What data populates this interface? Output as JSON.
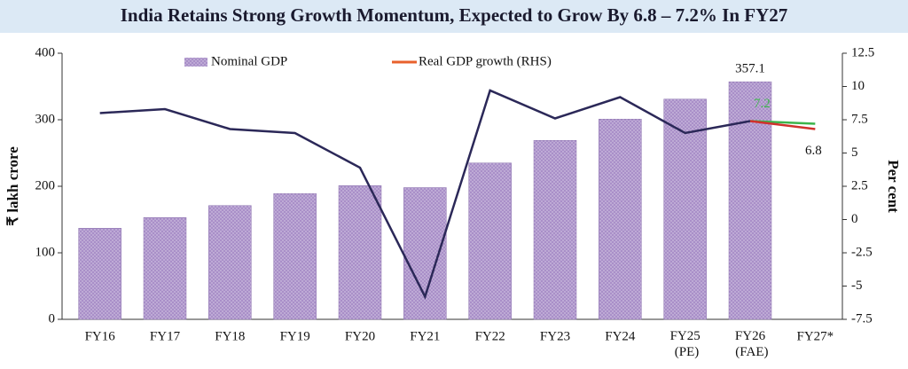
{
  "chart_data": {
    "type": "bar_line",
    "title": "India Retains Strong Growth Momentum, Expected to Grow By 6.8 – 7.2% In FY27",
    "y_label": "₹ lakh crore",
    "y2_label": "Per cent",
    "categories": [
      "FY16",
      "FY17",
      "FY18",
      "FY19",
      "FY20",
      "FY21",
      "FY22",
      "FY23",
      "FY24",
      "FY25 (PE)",
      "FY26 (FAE)",
      "FY27*"
    ],
    "series": [
      {
        "name": "Nominal GDP",
        "type": "bar",
        "color": "#a98fc8",
        "data_labels": true,
        "values": [
          137,
          153,
          171,
          189,
          201,
          198,
          235,
          269,
          301,
          331,
          357.1,
          null
        ]
      },
      {
        "name": "Real GDP growth (RHS)",
        "type": "line",
        "axis": "y2",
        "color": "#2b2858",
        "legend_color": "#e8612c",
        "values": [
          8.0,
          8.3,
          6.8,
          6.5,
          3.9,
          -5.8,
          9.7,
          7.6,
          9.2,
          6.5,
          7.4,
          null
        ]
      },
      {
        "type": "line",
        "axis": "y2",
        "color": "#3cb44b",
        "data_labels": true,
        "values": [
          null,
          null,
          null,
          null,
          null,
          null,
          null,
          null,
          null,
          null,
          7.4,
          7.2
        ]
      },
      {
        "type": "line",
        "axis": "y2",
        "color": "#d0312d",
        "data_labels": true,
        "values": [
          null,
          null,
          null,
          null,
          null,
          null,
          null,
          null,
          null,
          null,
          7.4,
          6.8
        ]
      }
    ],
    "ylim": [
      0,
      400
    ],
    "yticks": [
      0,
      100,
      200,
      300,
      400
    ],
    "y2lim": [
      -7.5,
      12.5
    ],
    "y2ticks": [
      -7.5,
      -5,
      -2.5,
      0,
      2.5,
      5,
      7.5,
      10,
      12.5
    ],
    "grid": false
  }
}
